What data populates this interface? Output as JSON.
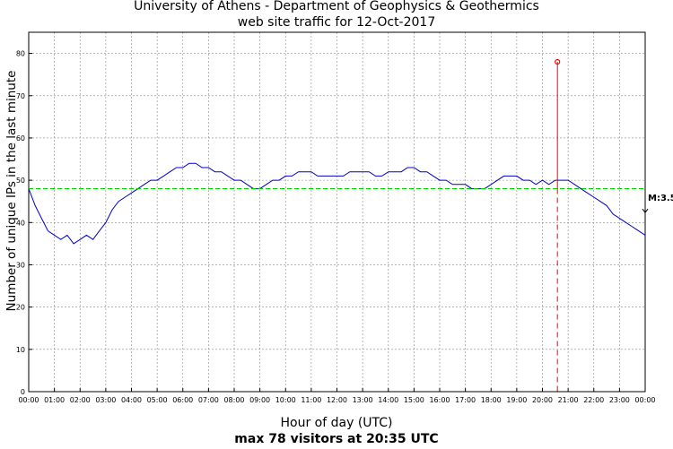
{
  "header": {
    "title_line1": "University of Athens - Department of Geophysics & Geothermics",
    "title_line2": "web site traffic for 12-Oct-2017"
  },
  "footer": {
    "xlabel": "Hour of day (UTC)",
    "summary": "max 78 visitors at 20:35 UTC"
  },
  "chart_data": {
    "type": "line",
    "ylabel": "Number of unique IPs in the last minute",
    "xlabel": "Hour of day (UTC)",
    "x_unit": "hour",
    "xlim": [
      0,
      24
    ],
    "ylim": [
      0,
      85
    ],
    "y_ticks": [
      0,
      10,
      20,
      30,
      40,
      50,
      60,
      70,
      80
    ],
    "x_tick_labels": [
      "00:00",
      "01:00",
      "02:00",
      "03:00",
      "04:00",
      "05:00",
      "06:00",
      "07:00",
      "08:00",
      "09:00",
      "10:00",
      "11:00",
      "12:00",
      "13:00",
      "14:00",
      "15:00",
      "16:00",
      "17:00",
      "18:00",
      "19:00",
      "20:00",
      "21:00",
      "22:00",
      "23:00",
      "00:00"
    ],
    "grid": true,
    "series": [
      {
        "color": "#0000cc",
        "x": [
          0,
          0.25,
          0.5,
          0.75,
          1,
          1.25,
          1.5,
          1.75,
          2,
          2.25,
          2.5,
          2.75,
          3,
          3.25,
          3.5,
          3.75,
          4,
          4.25,
          4.5,
          4.75,
          5,
          5.25,
          5.5,
          5.75,
          6,
          6.25,
          6.5,
          6.75,
          7,
          7.25,
          7.5,
          7.75,
          8,
          8.25,
          8.5,
          8.75,
          9,
          9.25,
          9.5,
          9.75,
          10,
          10.25,
          10.5,
          10.75,
          11,
          11.25,
          11.5,
          11.75,
          12,
          12.25,
          12.5,
          12.75,
          13,
          13.25,
          13.5,
          13.75,
          14,
          14.25,
          14.5,
          14.75,
          15,
          15.25,
          15.5,
          15.75,
          16,
          16.25,
          16.5,
          16.75,
          17,
          17.25,
          17.5,
          17.75,
          18,
          18.25,
          18.5,
          18.75,
          19,
          19.25,
          19.5,
          19.75,
          20,
          20.25,
          20.5,
          20.75,
          21,
          21.25,
          21.5,
          21.75,
          22,
          22.25,
          22.5,
          22.75,
          23,
          23.25,
          23.5,
          23.75,
          24
        ],
        "y": [
          48,
          44,
          41,
          38,
          37,
          36,
          37,
          35,
          36,
          37,
          36,
          38,
          40,
          43,
          45,
          46,
          47,
          48,
          49,
          50,
          50,
          51,
          52,
          53,
          53,
          54,
          54,
          53,
          53,
          52,
          52,
          51,
          50,
          50,
          49,
          48,
          48,
          49,
          50,
          50,
          51,
          51,
          52,
          52,
          52,
          51,
          51,
          51,
          51,
          51,
          52,
          52,
          52,
          52,
          51,
          51,
          52,
          52,
          52,
          53,
          53,
          52,
          52,
          51,
          50,
          50,
          49,
          49,
          49,
          48,
          48,
          48,
          49,
          50,
          51,
          51,
          51,
          50,
          50,
          49,
          50,
          49,
          50,
          50,
          50,
          49,
          48,
          47,
          46,
          45,
          44,
          42,
          41,
          40,
          39,
          38,
          37
        ]
      }
    ],
    "annotations": [
      {
        "type": "average_line",
        "y": 48,
        "color": "#00cc00"
      },
      {
        "type": "peak",
        "x": 20.583,
        "y": 78,
        "color": "#ff0000",
        "label": "max 78 visitors at 20:35 UTC"
      },
      {
        "type": "marker",
        "label": "M:3.5",
        "x": 24,
        "y": 43
      }
    ]
  }
}
